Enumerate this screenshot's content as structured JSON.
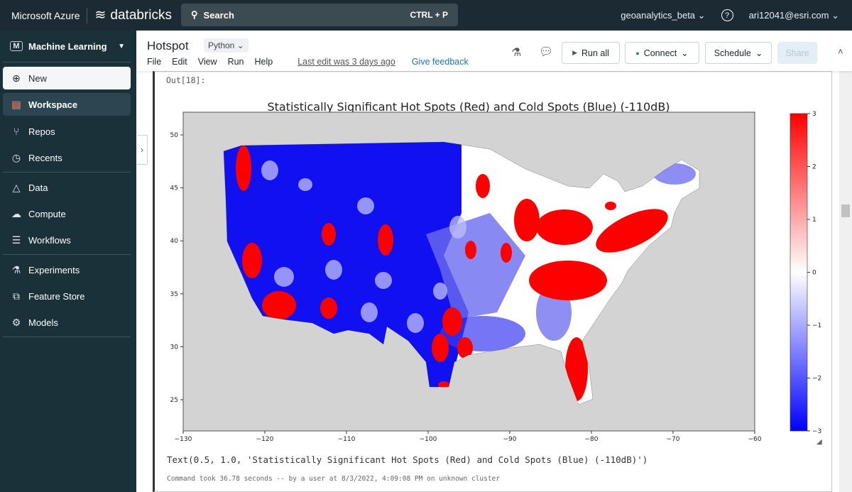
{
  "topbar": {
    "brand": "Microsoft Azure",
    "product": "databricks",
    "search_label": "Search",
    "search_shortcut": "CTRL + P",
    "workspace": "geoanalytics_beta",
    "user": "ari12041@esri.com"
  },
  "sidebar": {
    "persona": "Machine Learning",
    "items": [
      {
        "label": "New",
        "icon": "plus-circle"
      },
      {
        "label": "Workspace",
        "icon": "workspace"
      },
      {
        "label": "Repos",
        "icon": "repos"
      },
      {
        "label": "Recents",
        "icon": "clock"
      },
      {
        "label": "Data",
        "icon": "data"
      },
      {
        "label": "Compute",
        "icon": "cloud"
      },
      {
        "label": "Workflows",
        "icon": "workflows"
      },
      {
        "label": "Experiments",
        "icon": "flask"
      },
      {
        "label": "Feature Store",
        "icon": "feature-store"
      },
      {
        "label": "Models",
        "icon": "models"
      }
    ]
  },
  "notebook": {
    "title": "Hotspot",
    "language": "Python",
    "menu": [
      "File",
      "Edit",
      "View",
      "Run",
      "Help"
    ],
    "last_edit": "Last edit was 3 days ago",
    "feedback": "Give feedback",
    "run_all": "Run all",
    "connect": "Connect",
    "schedule": "Schedule",
    "share": "Share"
  },
  "cell": {
    "out_label": "Out[18]:",
    "text_output": "Text(0.5, 1.0, 'Statistically Significant Hot Spots (Red) and Cold Spots (Blue) (-110dB)')",
    "command_info": "Command took 36.78 seconds -- by a user at 8/3/2022, 4:09:08 PM on unknown cluster"
  },
  "chart_data": {
    "type": "heatmap",
    "title": "Statistically Significant Hot Spots (Red) and Cold Spots (Blue) (-110dB)",
    "xlim": [
      -130,
      -60
    ],
    "ylim": [
      22,
      52
    ],
    "xticks": [
      -130,
      -120,
      -110,
      -100,
      -90,
      -80,
      -70,
      -60
    ],
    "yticks": [
      25,
      30,
      35,
      40,
      45,
      50
    ],
    "colorbar": {
      "range": [
        -3,
        3
      ],
      "ticks": [
        3,
        2,
        1,
        0,
        -1,
        -2,
        -3
      ],
      "colors": [
        "#0000ff",
        "#ffffff",
        "#ff0000"
      ]
    },
    "background": "#d3d3d3"
  }
}
